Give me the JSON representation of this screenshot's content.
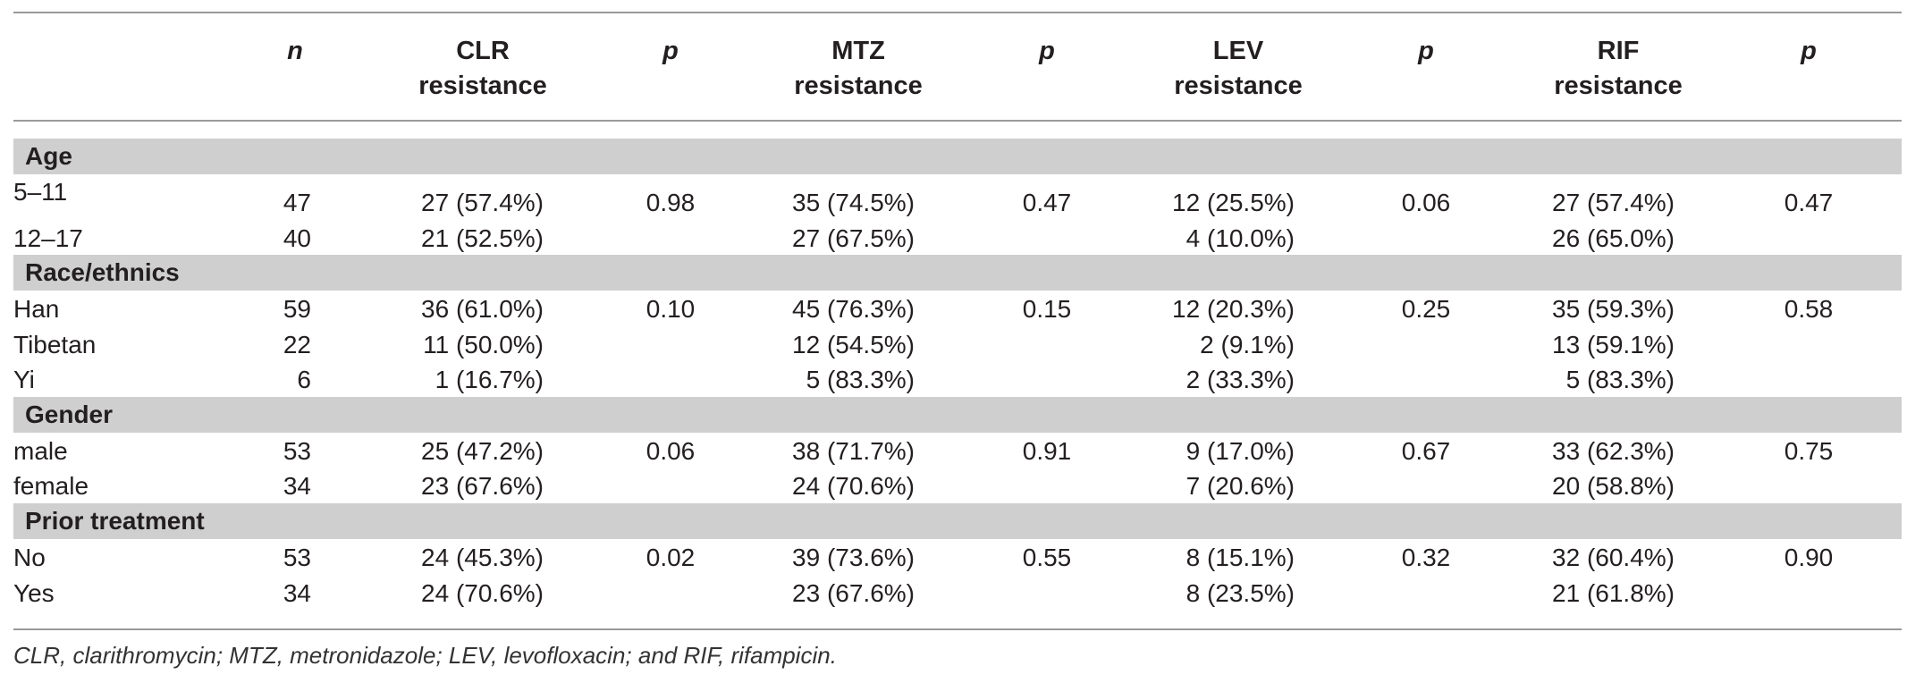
{
  "columns": [
    {
      "key": "n",
      "label": "n",
      "italic": true
    },
    {
      "key": "clr",
      "label": "CLR\nresistance",
      "italic": false
    },
    {
      "key": "p1",
      "label": "p",
      "italic": true
    },
    {
      "key": "mtz",
      "label": "MTZ\nresistance",
      "italic": false
    },
    {
      "key": "p2",
      "label": "p",
      "italic": true
    },
    {
      "key": "lev",
      "label": "LEV\nresistance",
      "italic": false
    },
    {
      "key": "p3",
      "label": "p",
      "italic": true
    },
    {
      "key": "rif",
      "label": "RIF\nresistance",
      "italic": false
    },
    {
      "key": "p4",
      "label": "p",
      "italic": true
    }
  ],
  "groups": [
    {
      "label": "Age",
      "rows": [
        {
          "name": "5–11",
          "n": "47",
          "clr": "27 (57.4%)",
          "p1": "0.98",
          "mtz": "35 (74.5%)",
          "p2": "0.47",
          "lev": "12 (25.5%)",
          "p3": "0.06",
          "rif": "27 (57.4%)",
          "p4": "0.47"
        },
        {
          "name": "12–17",
          "n": "40",
          "clr": "21 (52.5%)",
          "p1": "",
          "mtz": "27 (67.5%)",
          "p2": "",
          "lev": "4 (10.0%)",
          "p3": "",
          "rif": "26 (65.0%)",
          "p4": ""
        }
      ]
    },
    {
      "label": "Race/ethnics",
      "rows": [
        {
          "name": "Han",
          "n": "59",
          "clr": "36 (61.0%)",
          "p1": "0.10",
          "mtz": "45 (76.3%)",
          "p2": "0.15",
          "lev": "12 (20.3%)",
          "p3": "0.25",
          "rif": "35 (59.3%)",
          "p4": "0.58"
        },
        {
          "name": "Tibetan",
          "n": "22",
          "clr": "11 (50.0%)",
          "p1": "",
          "mtz": "12 (54.5%)",
          "p2": "",
          "lev": "2 (9.1%)",
          "p3": "",
          "rif": "13 (59.1%)",
          "p4": ""
        },
        {
          "name": "Yi",
          "n": "6",
          "clr": "1 (16.7%)",
          "p1": "",
          "mtz": "5 (83.3%)",
          "p2": "",
          "lev": "2 (33.3%)",
          "p3": "",
          "rif": "5 (83.3%)",
          "p4": ""
        }
      ]
    },
    {
      "label": "Gender",
      "rows": [
        {
          "name": "male",
          "n": "53",
          "clr": "25 (47.2%)",
          "p1": "0.06",
          "mtz": "38 (71.7%)",
          "p2": "0.91",
          "lev": "9 (17.0%)",
          "p3": "0.67",
          "rif": "33 (62.3%)",
          "p4": "0.75"
        },
        {
          "name": "female",
          "n": "34",
          "clr": "23 (67.6%)",
          "p1": "",
          "mtz": "24 (70.6%)",
          "p2": "",
          "lev": "7 (20.6%)",
          "p3": "",
          "rif": "20 (58.8%)",
          "p4": ""
        }
      ]
    },
    {
      "label": "Prior treatment",
      "rows": [
        {
          "name": "No",
          "n": "53",
          "clr": "24 (45.3%)",
          "p1": "0.02",
          "mtz": "39 (73.6%)",
          "p2": "0.55",
          "lev": "8 (15.1%)",
          "p3": "0.32",
          "rif": "32 (60.4%)",
          "p4": "0.90"
        },
        {
          "name": "Yes",
          "n": "34",
          "clr": "24 (70.6%)",
          "p1": "",
          "mtz": "23 (67.6%)",
          "p2": "",
          "lev": "8 (23.5%)",
          "p3": "",
          "rif": "21 (61.8%)",
          "p4": ""
        }
      ]
    }
  ],
  "footnote": "CLR, clarithromycin; MTZ, metronidazole; LEV, levofloxacin; and RIF, rifampicin."
}
